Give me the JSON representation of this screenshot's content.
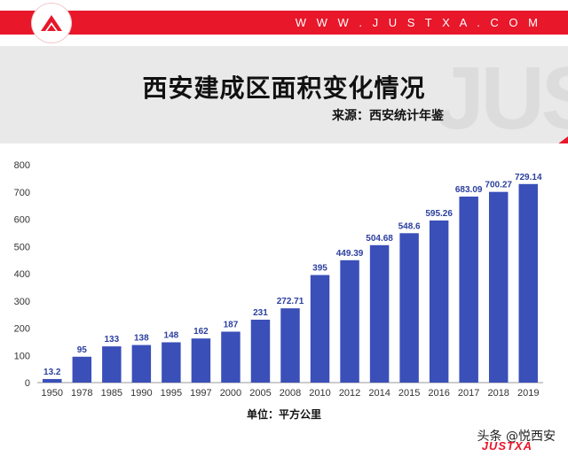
{
  "header": {
    "site_url": "W W W . J U S T X A . C O M",
    "logo_icon": "mountain-logo-icon",
    "brand_color": "#e8172a"
  },
  "banner": {
    "title": "西安建成区面积变化情况",
    "source": "来源：西安统计年鉴",
    "watermark": "JUST"
  },
  "chart_data": {
    "type": "bar",
    "title": "西安建成区面积变化情况",
    "xlabel": "",
    "ylabel": "",
    "unit_label": "单位：平方公里",
    "categories": [
      "1950",
      "1978",
      "1985",
      "1990",
      "1995",
      "1997",
      "2000",
      "2005",
      "2008",
      "2010",
      "2012",
      "2014",
      "2015",
      "2016",
      "2017",
      "2018",
      "2019"
    ],
    "values": [
      13.2,
      95,
      133,
      138,
      148,
      162,
      187,
      231,
      272.71,
      395,
      449.39,
      504.68,
      548.6,
      595.26,
      683.09,
      700.27,
      729.14
    ],
    "value_labels": [
      "13.2",
      "95",
      "133",
      "138",
      "148",
      "162",
      "187",
      "231",
      "272.71",
      "395",
      "449.39",
      "504.68",
      "548.6",
      "595.26",
      "683.09",
      "700.27",
      "729.14"
    ],
    "ylim": [
      0,
      800
    ],
    "yticks": [
      0,
      100,
      200,
      300,
      400,
      500,
      600,
      700,
      800
    ],
    "grid": false,
    "bar_color": "#3a4fb8",
    "label_color": "#2b3f9e"
  },
  "footer": {
    "attribution": "头条 @悦西安",
    "mark": "JUSTXA"
  }
}
